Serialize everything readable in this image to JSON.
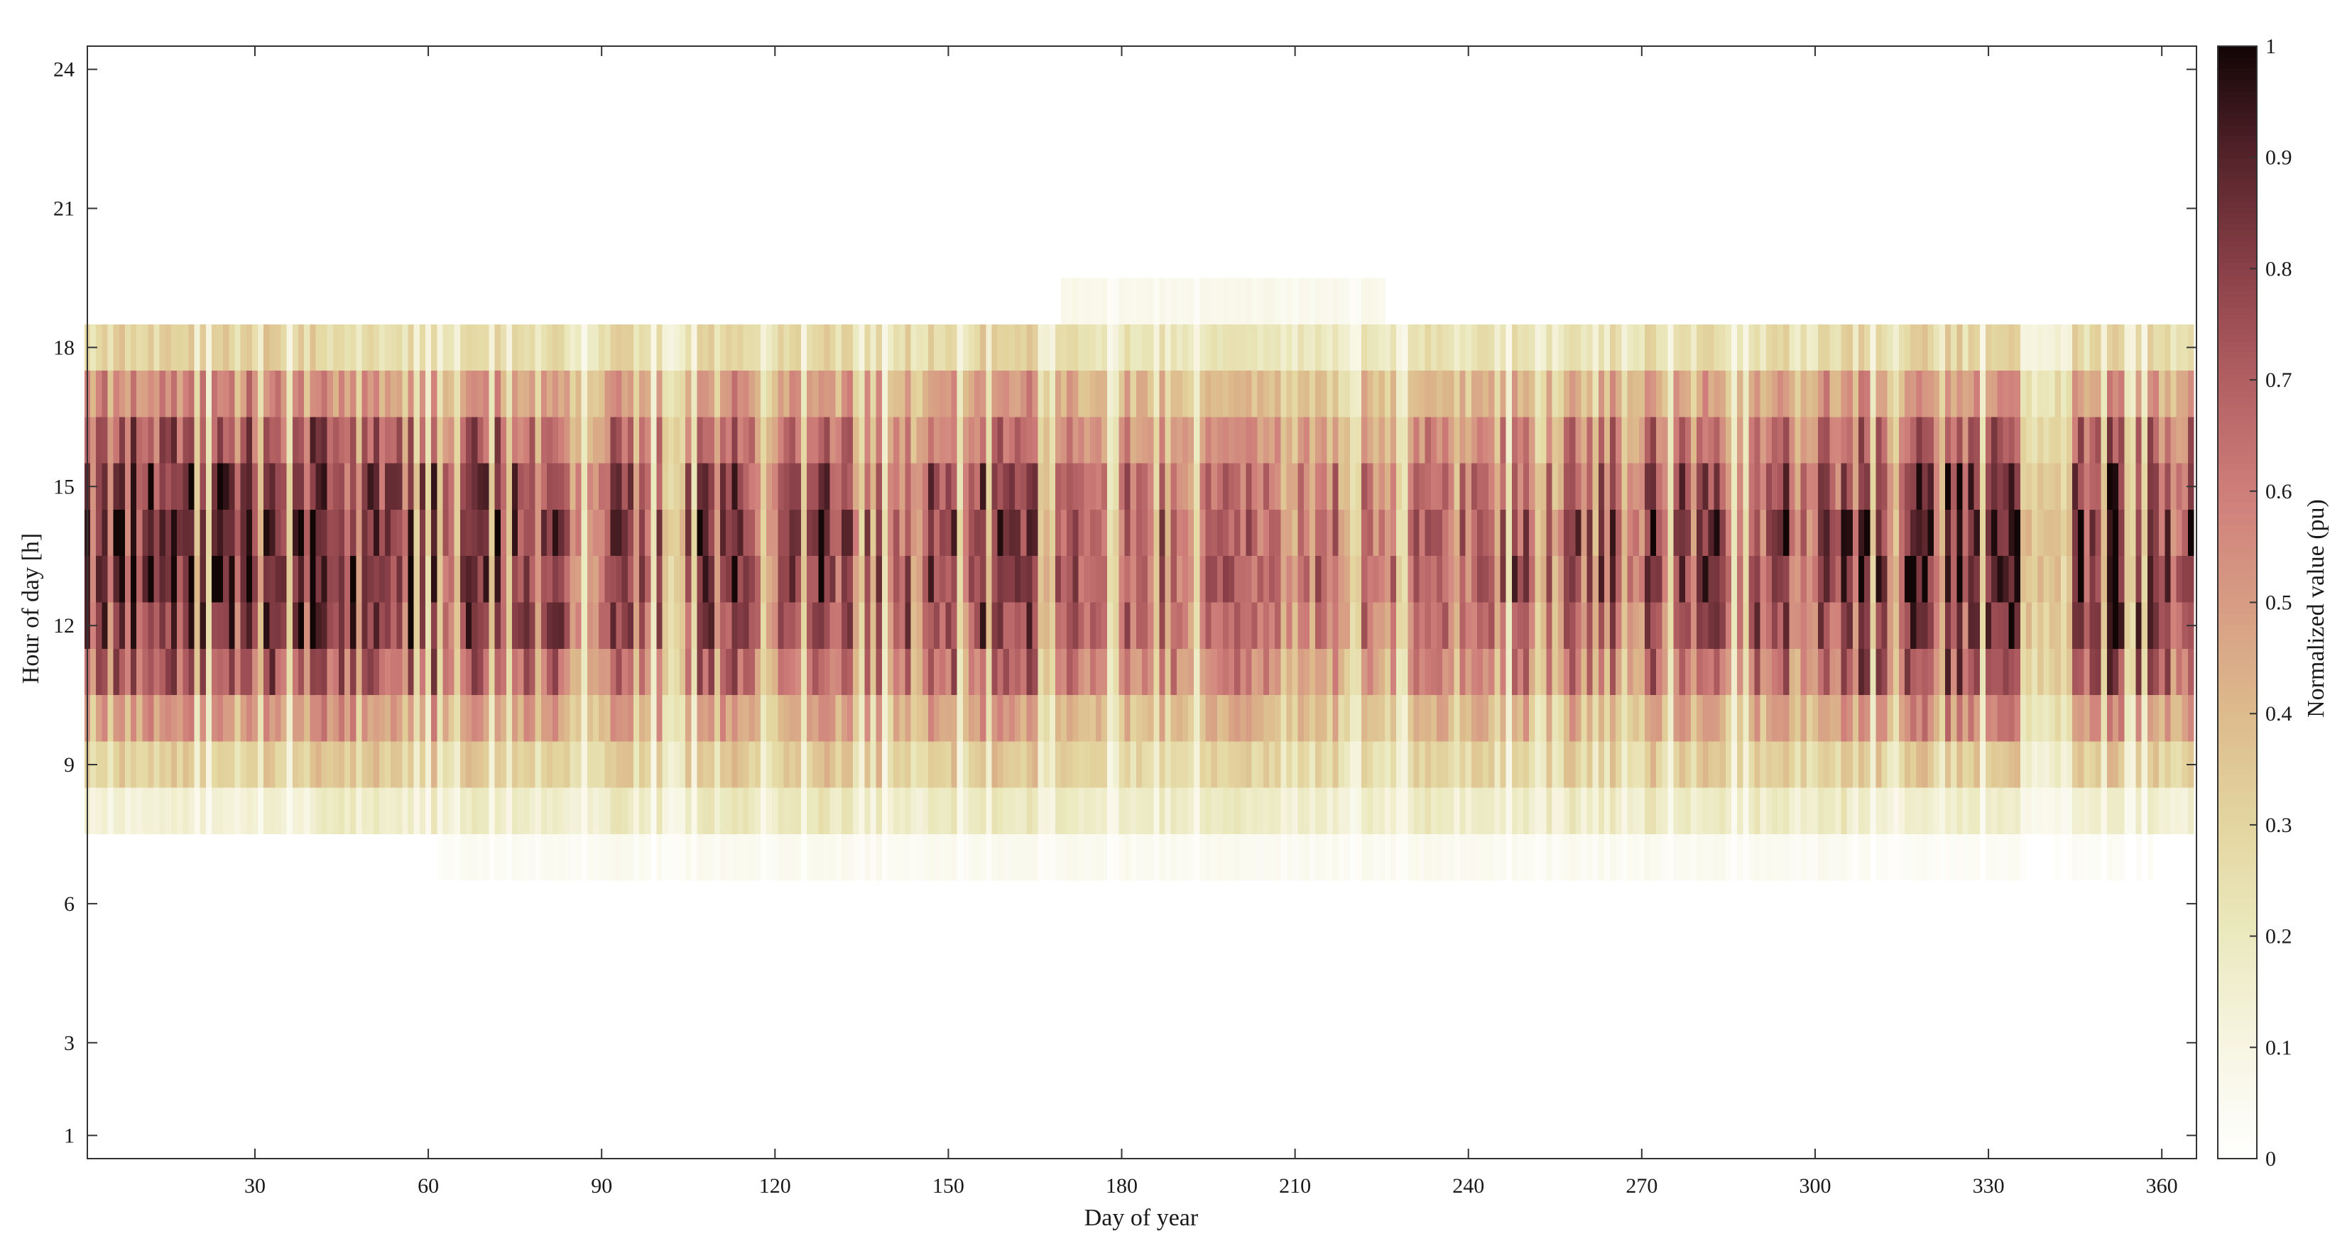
{
  "chart_data": {
    "type": "heatmap",
    "xlabel": "Day of year",
    "ylabel": "Hour of day [h]",
    "colorbar_label": "Normalized value (pu)",
    "xlim": [
      1,
      366
    ],
    "ylim": [
      0.5,
      24.5
    ],
    "x_ticks": [
      30,
      60,
      90,
      120,
      150,
      180,
      210,
      240,
      270,
      300,
      330,
      360
    ],
    "y_ticks": [
      1,
      3,
      6,
      9,
      12,
      15,
      18,
      21,
      24
    ],
    "colorbar_range": [
      0,
      1
    ],
    "colorbar_ticks": [
      0,
      0.1,
      0.2,
      0.3,
      0.4,
      0.5,
      0.6,
      0.7,
      0.8,
      0.9,
      1
    ],
    "colormap": [
      "#ffffff",
      "#f7f5e2",
      "#ebe9bf",
      "#e4d6a0",
      "#ddbb8c",
      "#d79c84",
      "#cf7e7a",
      "#b25f62",
      "#8a4048",
      "#55232a",
      "#120506"
    ],
    "grid": false,
    "cells": {
      "hours": [
        7,
        8,
        9,
        10,
        11,
        12,
        13,
        14,
        15,
        16,
        17,
        18,
        19
      ],
      "season_blocks": [
        {
          "days": [
            1,
            40
          ],
          "hour_mean": [
            0.02,
            0.15,
            0.35,
            0.55,
            0.78,
            0.9,
            0.95,
            0.95,
            0.9,
            0.78,
            0.6,
            0.35,
            0.12
          ]
        },
        {
          "days": [
            41,
            85
          ],
          "hour_mean": [
            0.05,
            0.2,
            0.38,
            0.55,
            0.75,
            0.88,
            0.92,
            0.92,
            0.88,
            0.75,
            0.55,
            0.3,
            0.1
          ]
        },
        {
          "days": [
            86,
            165
          ],
          "hour_mean": [
            0.06,
            0.22,
            0.38,
            0.52,
            0.7,
            0.8,
            0.85,
            0.85,
            0.8,
            0.7,
            0.55,
            0.32,
            0.12
          ]
        },
        {
          "days": [
            166,
            245
          ],
          "hour_mean": [
            0.06,
            0.2,
            0.33,
            0.45,
            0.6,
            0.7,
            0.74,
            0.72,
            0.68,
            0.58,
            0.45,
            0.25,
            0.08
          ]
        },
        {
          "days": [
            246,
            305
          ],
          "hour_mean": [
            0.06,
            0.22,
            0.38,
            0.52,
            0.7,
            0.82,
            0.88,
            0.88,
            0.82,
            0.7,
            0.55,
            0.3,
            0.1
          ]
        },
        {
          "days": [
            306,
            365
          ],
          "hour_mean": [
            0.04,
            0.18,
            0.38,
            0.58,
            0.8,
            0.9,
            0.95,
            0.95,
            0.88,
            0.75,
            0.58,
            0.33,
            0.1
          ]
        }
      ]
    }
  }
}
